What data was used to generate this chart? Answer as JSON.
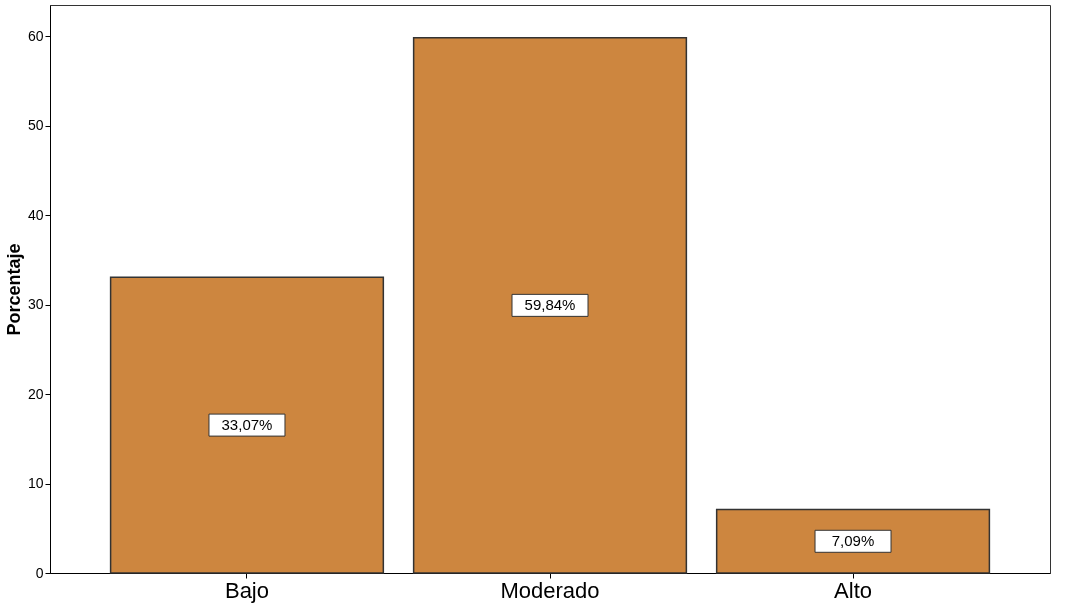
{
  "chart_data": {
    "type": "bar",
    "ylabel": "Porcentaje",
    "categories": [
      "Bajo",
      "Moderado",
      "Alto"
    ],
    "values": [
      33.07,
      59.84,
      7.09
    ],
    "value_labels": [
      "33,07%",
      "59,84%",
      "7,09%"
    ],
    "color": "#cd863f",
    "ylim": [
      0,
      63.5
    ],
    "yticks": [
      0,
      10,
      20,
      30,
      40,
      50,
      60
    ],
    "grid": false
  }
}
